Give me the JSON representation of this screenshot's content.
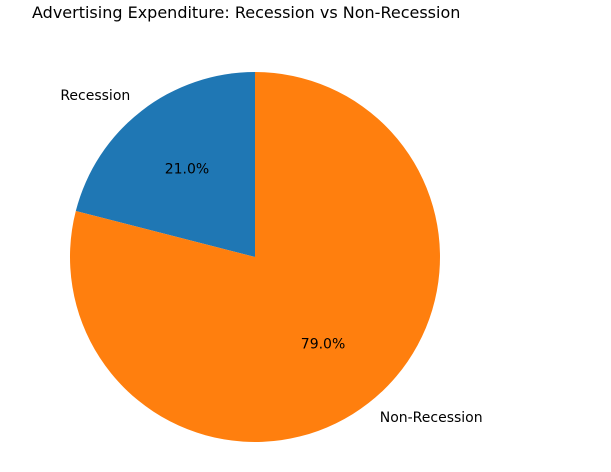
{
  "chart_data": {
    "type": "pie",
    "title": "Advertising Expenditure: Recession vs Non-Recession",
    "labels": [
      "Recession",
      "Non-Recession"
    ],
    "values": [
      21.0,
      79.0
    ],
    "percent_labels": [
      "21.0%",
      "79.0%"
    ],
    "colors": [
      "#1f77b4",
      "#ff7f0e"
    ],
    "start_angle_deg": 90,
    "direction": "counterclockwise"
  }
}
